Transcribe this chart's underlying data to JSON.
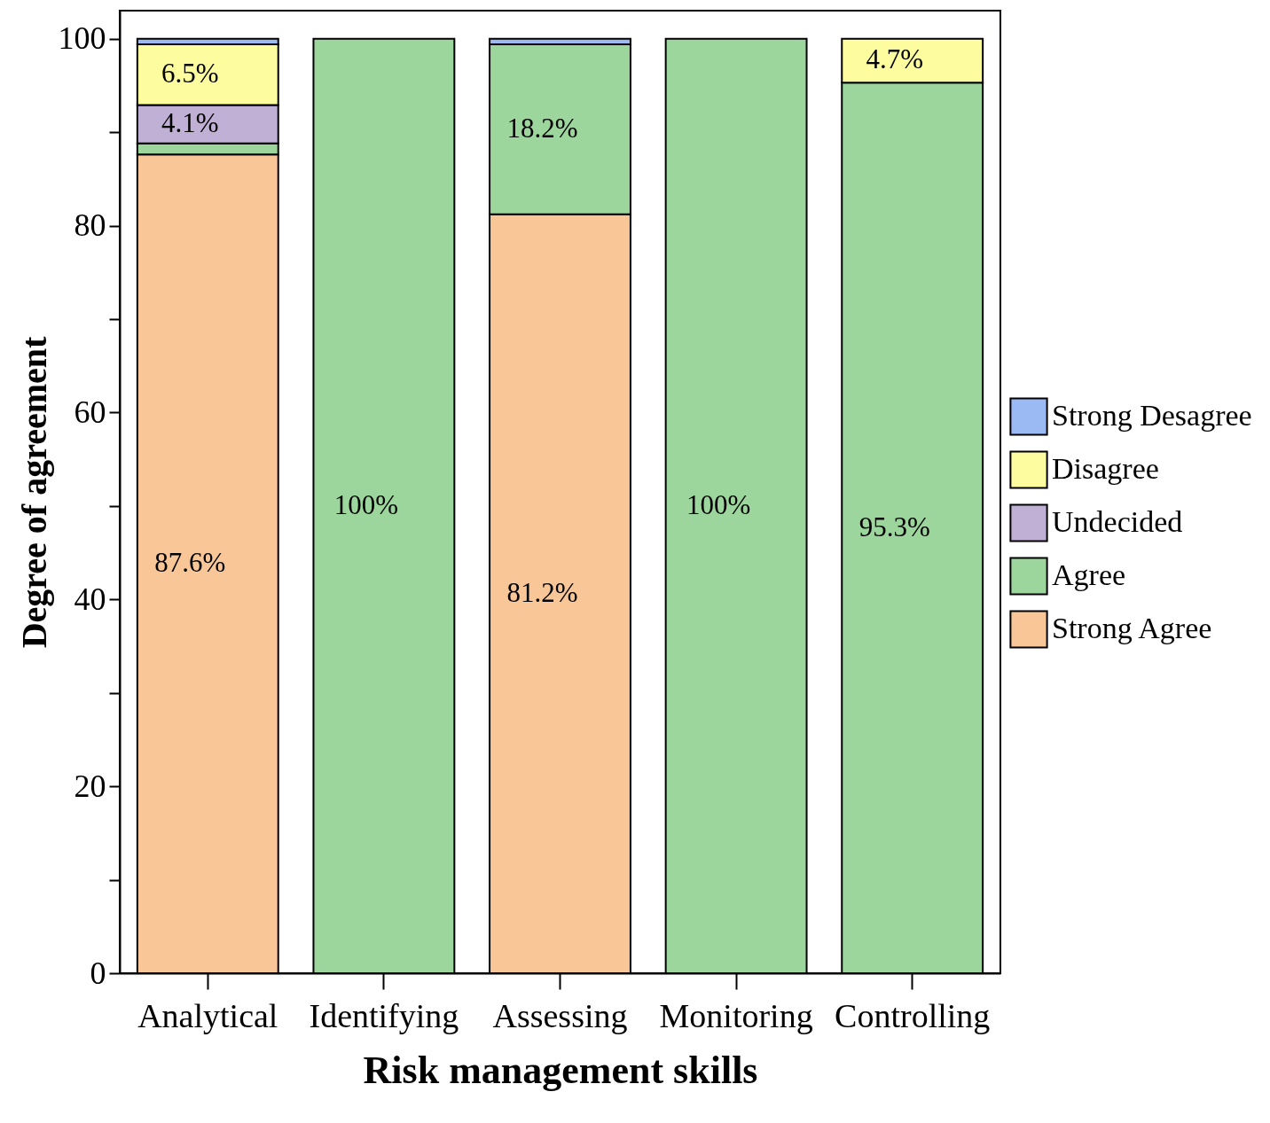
{
  "chart_data": {
    "type": "bar",
    "stacked": true,
    "xlabel": "Risk management skills",
    "ylabel": "Degree of agreement",
    "categories": [
      "Analytical",
      "Identifying",
      "Assessing",
      "Monitoring",
      "Controlling"
    ],
    "series": [
      {
        "name": "Strong Agree",
        "color": "#f9c797",
        "values": [
          87.6,
          null,
          81.2,
          null,
          null
        ],
        "value_labels": [
          "87.6%",
          null,
          "81.2%",
          null,
          null
        ]
      },
      {
        "name": "Agree",
        "color": "#9dd69c",
        "values": [
          1.2,
          100,
          18.2,
          100,
          95.3
        ],
        "value_labels": [
          null,
          "100%",
          "18.2%",
          "100%",
          "95.3%"
        ]
      },
      {
        "name": "Undecided",
        "color": "#c1b0d6",
        "values": [
          4.1,
          null,
          null,
          null,
          null
        ],
        "value_labels": [
          "4.1%",
          null,
          null,
          null,
          null
        ]
      },
      {
        "name": "Disagree",
        "color": "#fdfc9f",
        "values": [
          6.5,
          null,
          null,
          null,
          4.7
        ],
        "value_labels": [
          "6.5%",
          null,
          null,
          null,
          "4.7%"
        ]
      },
      {
        "name": "Strong Desagree",
        "color": "#9bbaf3",
        "values": [
          0.6,
          null,
          0.6,
          null,
          null
        ]
      }
    ],
    "ylim": [
      0,
      103
    ],
    "yticks": [
      0,
      {
        "value": 10,
        "label": null
      },
      20,
      {
        "value": 30,
        "label": null
      },
      40,
      {
        "value": 50,
        "label": null
      },
      60,
      {
        "value": 70,
        "label": null
      },
      80,
      {
        "value": 90,
        "label": null
      },
      100
    ],
    "grid": false,
    "legend": "right"
  }
}
